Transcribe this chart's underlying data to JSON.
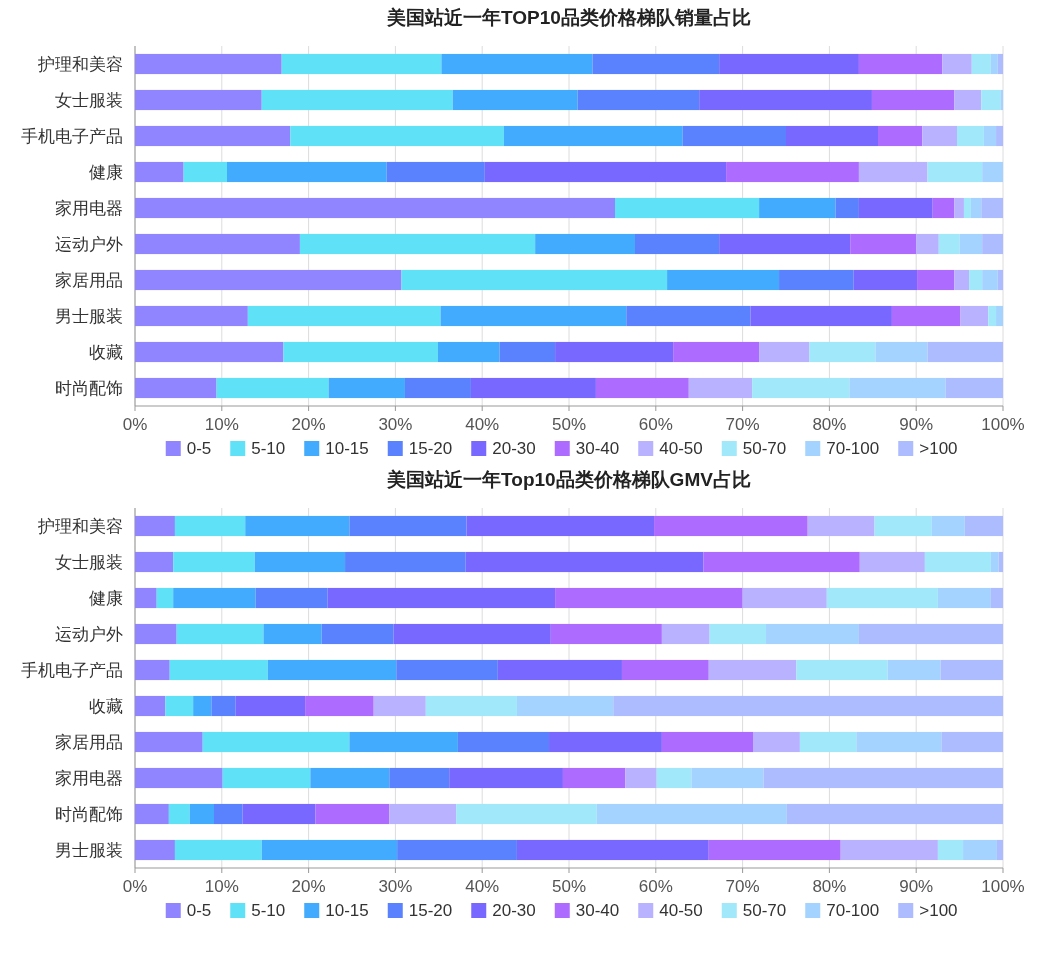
{
  "chart_data": [
    {
      "type": "bar",
      "orientation": "horizontal",
      "stacked": true,
      "title": "美国站近一年TOP10品类价格梯队销量占比",
      "legend": "bottom",
      "grid": "x",
      "xlim": [
        0,
        100
      ],
      "xticks": [
        {
          "value": 0,
          "label": "0%"
        },
        {
          "value": 10,
          "label": "10%"
        },
        {
          "value": 20,
          "label": "20%"
        },
        {
          "value": 30,
          "label": "30%"
        },
        {
          "value": 40,
          "label": "40%"
        },
        {
          "value": 50,
          "label": "50%"
        },
        {
          "value": 60,
          "label": "60%"
        },
        {
          "value": 70,
          "label": "70%"
        },
        {
          "value": 80,
          "label": "80%"
        },
        {
          "value": 90,
          "label": "90%"
        },
        {
          "value": 100,
          "label": "100%"
        }
      ],
      "categories": [
        "护理和美容",
        "女士服装",
        "手机电子产品",
        "健康",
        "家用电器",
        "运动户外",
        "家居用品",
        "男士服装",
        "收藏",
        "时尚配饰"
      ],
      "series": [
        {
          "name": "0-5",
          "color": "#9085ff",
          "values": [
            16.9,
            14.6,
            17.9,
            5.6,
            55.3,
            19.0,
            30.7,
            13.0,
            17.1,
            9.4
          ]
        },
        {
          "name": "5-10",
          "color": "#5fe1f8",
          "values": [
            18.4,
            22.0,
            24.6,
            5.0,
            16.6,
            27.1,
            30.6,
            22.2,
            17.8,
            12.9
          ]
        },
        {
          "name": "10-15",
          "color": "#42abfd",
          "values": [
            17.4,
            14.4,
            20.6,
            18.4,
            8.8,
            11.5,
            12.9,
            21.4,
            7.1,
            8.8
          ]
        },
        {
          "name": "15-20",
          "color": "#5a82ff",
          "values": [
            14.6,
            14.0,
            11.9,
            11.3,
            2.7,
            9.7,
            8.6,
            14.3,
            6.4,
            7.6
          ]
        },
        {
          "name": "20-30",
          "color": "#7868ff",
          "values": [
            16.1,
            19.9,
            10.6,
            27.8,
            8.5,
            15.1,
            7.3,
            16.3,
            13.6,
            14.4
          ]
        },
        {
          "name": "30-40",
          "color": "#ae6bff",
          "values": [
            9.6,
            9.5,
            5.1,
            15.3,
            2.5,
            7.6,
            4.3,
            7.9,
            9.9,
            10.7
          ]
        },
        {
          "name": "40-50",
          "color": "#b8b2ff",
          "values": [
            3.4,
            3.1,
            4.0,
            7.9,
            1.1,
            2.6,
            1.7,
            3.2,
            5.8,
            7.3
          ]
        },
        {
          "name": "50-70",
          "color": "#a0e8fa",
          "values": [
            2.2,
            2.2,
            3.1,
            6.3,
            0.8,
            2.4,
            1.5,
            0.9,
            7.6,
            11.2
          ]
        },
        {
          "name": "70-100",
          "color": "#a4d3ff",
          "values": [
            0.8,
            0.3,
            1.4,
            2.4,
            1.2,
            2.6,
            1.8,
            0.8,
            6.0,
            11.1
          ]
        },
        {
          "name": ">100",
          "color": "#acbcff",
          "values": [
            0.6,
            0,
            0.8,
            null,
            2.5,
            2.4,
            0.6,
            0,
            8.7,
            6.6
          ]
        }
      ]
    },
    {
      "type": "bar",
      "orientation": "horizontal",
      "stacked": true,
      "title": "美国站近一年Top10品类价格梯队GMV占比",
      "legend": "bottom",
      "grid": "x",
      "xlim": [
        0,
        100
      ],
      "xticks": [
        {
          "value": 0,
          "label": "0%"
        },
        {
          "value": 10,
          "label": "10%"
        },
        {
          "value": 20,
          "label": "20%"
        },
        {
          "value": 30,
          "label": "30%"
        },
        {
          "value": 40,
          "label": "40%"
        },
        {
          "value": 50,
          "label": "50%"
        },
        {
          "value": 60,
          "label": "60%"
        },
        {
          "value": 70,
          "label": "70%"
        },
        {
          "value": 80,
          "label": "80%"
        },
        {
          "value": 90,
          "label": "90%"
        },
        {
          "value": 100,
          "label": "100%"
        }
      ],
      "categories": [
        "护理和美容",
        "女士服装",
        "健康",
        "运动户外",
        "手机电子产品",
        "收藏",
        "家居用品",
        "家用电器",
        "时尚配饰",
        "男士服装"
      ],
      "series": [
        {
          "name": "0-5",
          "color": "#9085ff",
          "values": [
            4.6,
            4.4,
            2.5,
            4.8,
            4.0,
            3.5,
            7.8,
            10.1,
            3.9,
            4.6
          ]
        },
        {
          "name": "5-10",
          "color": "#5fe1f8",
          "values": [
            8.1,
            9.4,
            1.9,
            10.0,
            11.3,
            3.2,
            16.9,
            10.1,
            2.4,
            10.0
          ]
        },
        {
          "name": "10-15",
          "color": "#42abfd",
          "values": [
            12.0,
            10.4,
            9.5,
            6.7,
            14.8,
            2.1,
            12.5,
            9.1,
            2.8,
            15.6
          ]
        },
        {
          "name": "15-20",
          "color": "#5a82ff",
          "values": [
            13.5,
            13.9,
            8.3,
            8.3,
            11.7,
            2.8,
            10.5,
            6.9,
            3.3,
            13.8
          ]
        },
        {
          "name": "20-30",
          "color": "#7868ff",
          "values": [
            21.6,
            27.4,
            26.2,
            18.1,
            14.3,
            8.0,
            13.0,
            13.1,
            8.4,
            22.1
          ]
        },
        {
          "name": "30-40",
          "color": "#ae6bff",
          "values": [
            17.7,
            18.0,
            21.6,
            12.8,
            10.0,
            7.9,
            10.5,
            7.2,
            8.5,
            15.2
          ]
        },
        {
          "name": "40-50",
          "color": "#b8b2ff",
          "values": [
            7.7,
            7.5,
            9.7,
            5.5,
            10.1,
            6.0,
            5.4,
            3.6,
            7.7,
            11.2
          ]
        },
        {
          "name": "50-70",
          "color": "#a0e8fa",
          "values": [
            6.6,
            7.6,
            12.8,
            6.5,
            10.5,
            10.5,
            6.5,
            4.0,
            16.2,
            2.9
          ]
        },
        {
          "name": "70-100",
          "color": "#a4d3ff",
          "values": [
            3.8,
            0.9,
            6.1,
            10.7,
            6.1,
            11.1,
            9.8,
            8.3,
            21.9,
            3.9
          ]
        },
        {
          "name": ">100",
          "color": "#acbcff",
          "values": [
            4.4,
            0.5,
            1.4,
            16.6,
            7.2,
            44.9,
            7.1,
            27.6,
            24.9,
            0.7
          ]
        }
      ]
    }
  ]
}
